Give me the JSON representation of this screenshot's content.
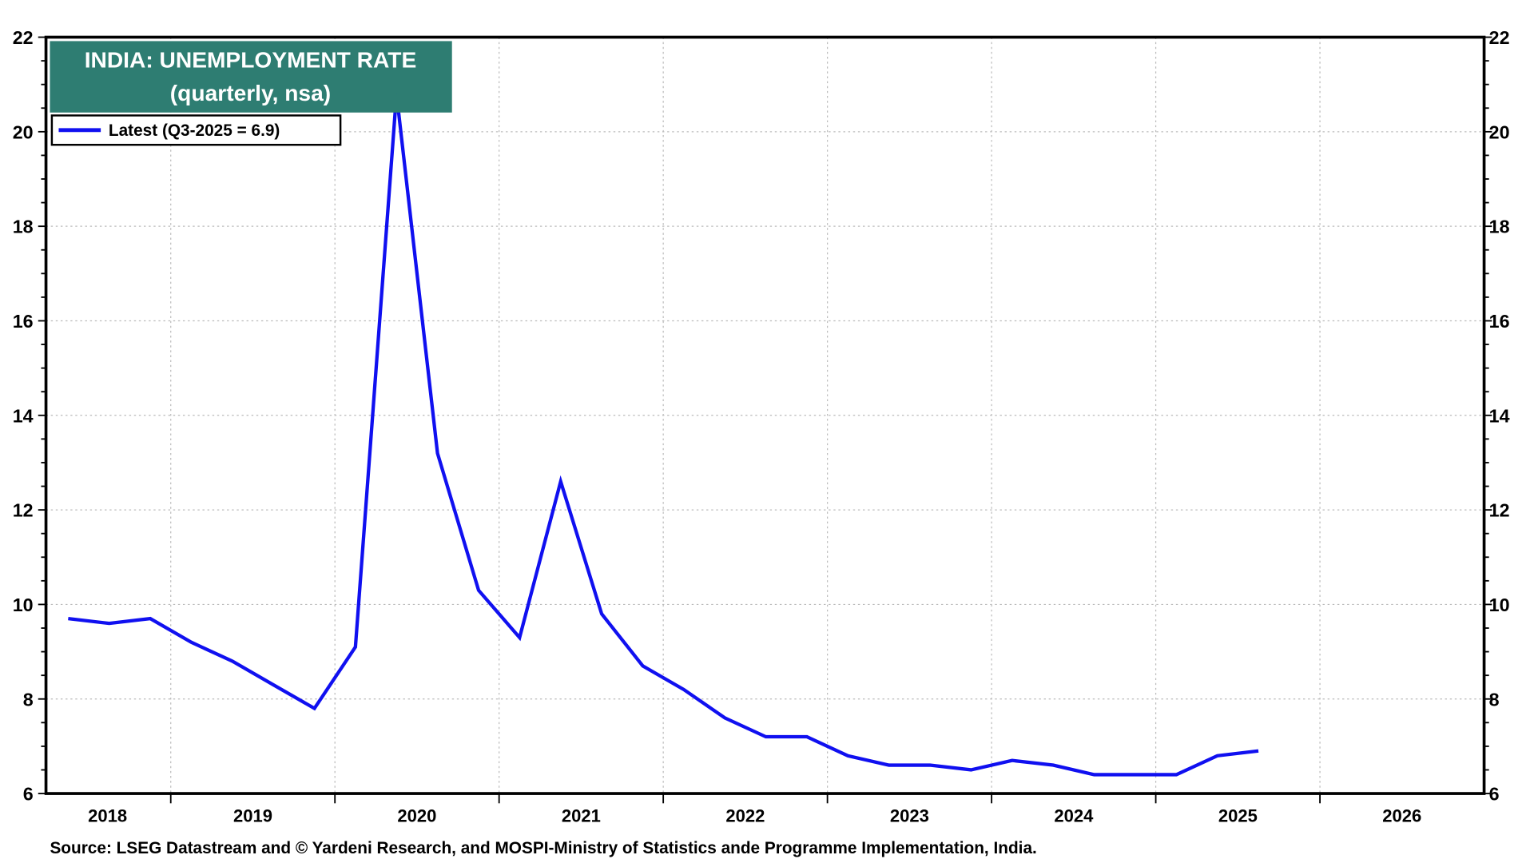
{
  "chart_data": {
    "type": "line",
    "title": "INDIA: UNEMPLOYMENT RATE",
    "subtitle": "(quarterly, nsa)",
    "legend": [
      {
        "label": "Latest (Q3-2025 = 6.9)",
        "color": "#1010f0"
      }
    ],
    "legend_placement": "top-left",
    "title_box_color": "#2e7d72",
    "ylim": [
      6,
      22
    ],
    "yticks": [
      6,
      8,
      10,
      12,
      14,
      16,
      18,
      20,
      22
    ],
    "xlim": [
      2018.24,
      2027.0
    ],
    "xtick_labels": [
      "2018",
      "2019",
      "2020",
      "2021",
      "2022",
      "2023",
      "2024",
      "2025",
      "2026"
    ],
    "grid": true,
    "series": [
      {
        "name": "Unemployment rate",
        "start": "2018-Q2",
        "x": [
          "2018-Q2",
          "2018-Q3",
          "2018-Q4",
          "2019-Q1",
          "2019-Q2",
          "2019-Q3",
          "2019-Q4",
          "2020-Q1",
          "2020-Q2",
          "2020-Q3",
          "2020-Q4",
          "2021-Q1",
          "2021-Q2",
          "2021-Q3",
          "2021-Q4",
          "2022-Q1",
          "2022-Q2",
          "2022-Q3",
          "2022-Q4",
          "2023-Q1",
          "2023-Q2",
          "2023-Q3",
          "2023-Q4",
          "2024-Q1",
          "2024-Q2",
          "2024-Q3",
          "2024-Q4",
          "2025-Q1",
          "2025-Q2",
          "2025-Q3"
        ],
        "values": [
          9.7,
          9.6,
          9.7,
          9.2,
          8.8,
          8.3,
          7.8,
          9.1,
          20.8,
          13.2,
          10.3,
          9.3,
          12.6,
          9.8,
          8.7,
          8.2,
          7.6,
          7.2,
          7.2,
          6.8,
          6.6,
          6.6,
          6.5,
          6.7,
          6.6,
          6.4,
          6.4,
          6.4,
          6.8,
          6.9
        ]
      }
    ],
    "source": "Source: LSEG Datastream and © Yardeni Research, and MOSPI-Ministry of Statistics ande Programme Implementation, India."
  }
}
